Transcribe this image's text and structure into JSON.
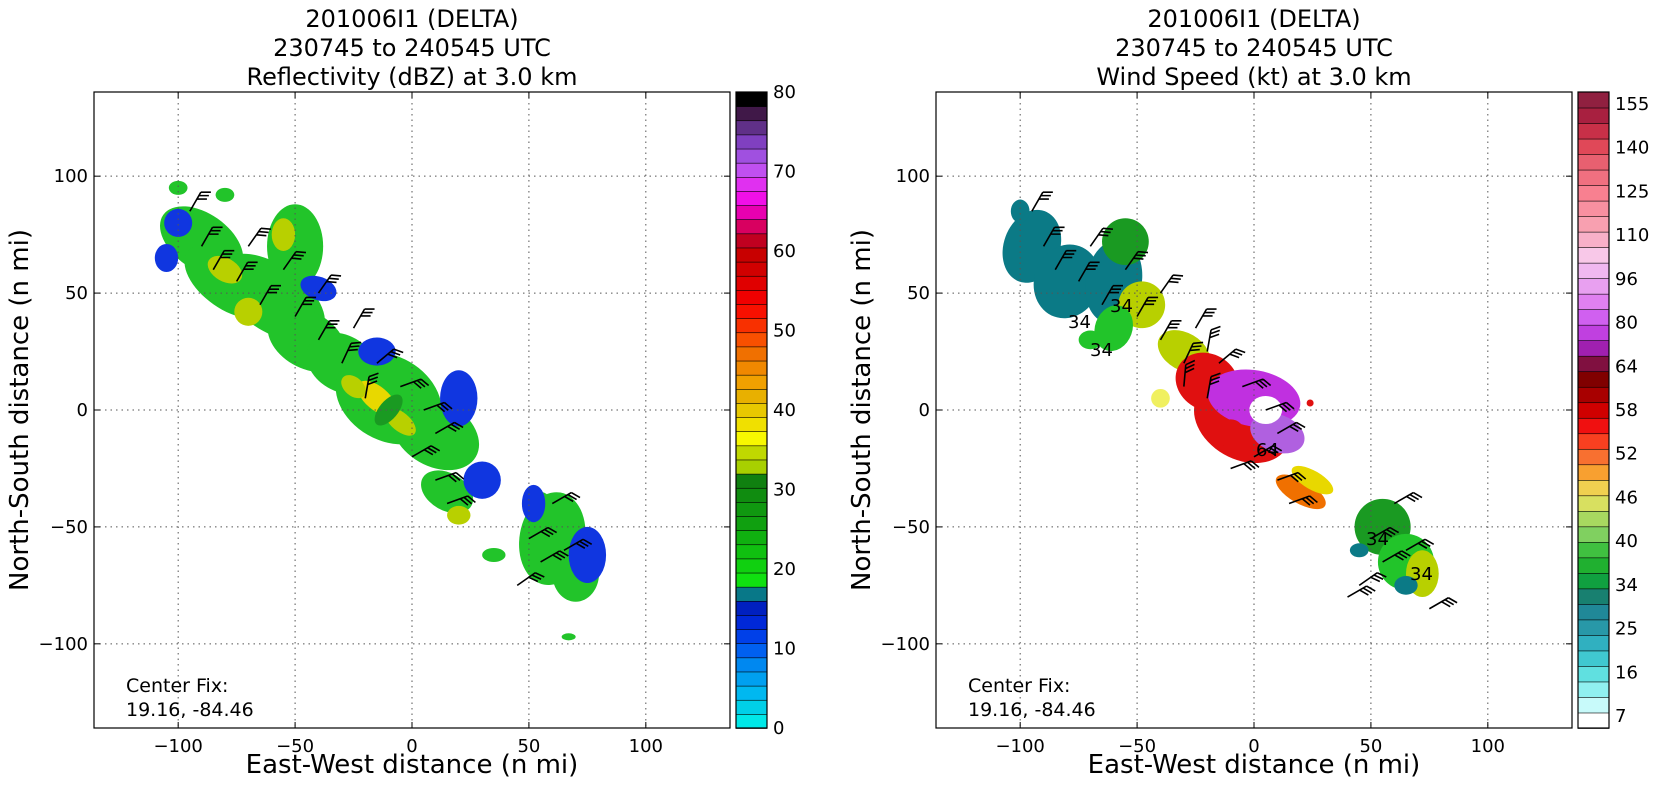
{
  "colors": {
    "blue": "#1036e0",
    "teal": "#0b7a86",
    "green": "#22c42a",
    "darkgreen": "#1a9a22",
    "yellowgreen": "#b8d000",
    "yellow": "#e8d800",
    "orange": "#f07000",
    "red": "#e01010",
    "magenta": "#c030e0",
    "purple": "#b060e0"
  },
  "chart_data": [
    {
      "type": "heatmap",
      "title_lines": [
        "201006I1 (DELTA)",
        "230745 to 240545 UTC",
        "Reflectivity (dBZ) at 3.0 km"
      ],
      "xlabel": "East-West distance (n mi)",
      "ylabel": "North-South distance (n mi)",
      "xlim": [
        -136,
        136
      ],
      "ylim": [
        -136,
        136
      ],
      "xticks": [
        -100,
        -50,
        0,
        50,
        100
      ],
      "yticks": [
        -100,
        -50,
        0,
        50,
        100
      ],
      "grid": true,
      "annotation": {
        "line1": "Center Fix:",
        "line2": "19.16, -84.46"
      },
      "colorbar": {
        "min": 0,
        "max": 80,
        "ticks": [
          0,
          10,
          20,
          30,
          40,
          50,
          60,
          70,
          80
        ],
        "colors": [
          "#00e8e8",
          "#00d0e8",
          "#00b8f0",
          "#00a0f0",
          "#0088f0",
          "#0060f0",
          "#0040e8",
          "#0028d8",
          "#0020c0",
          "#087888",
          "#10e010",
          "#10d010",
          "#10c010",
          "#10b010",
          "#10a010",
          "#109810",
          "#108c10",
          "#108010",
          "#a8d000",
          "#c0d800",
          "#f8f800",
          "#f0e000",
          "#e8c800",
          "#e8b000",
          "#f0a000",
          "#f08800",
          "#f07000",
          "#f85000",
          "#f83000",
          "#f81000",
          "#f00000",
          "#e00000",
          "#d00000",
          "#c80000",
          "#c00020",
          "#d80060",
          "#e800b0",
          "#f010e8",
          "#e030f0",
          "#c050f0",
          "#a050e0",
          "#8040c0",
          "#603088",
          "#401848",
          "#000000"
        ]
      }
    },
    {
      "type": "heatmap",
      "title_lines": [
        "201006I1 (DELTA)",
        "230745 to 240545 UTC",
        "Wind Speed (kt) at 3.0 km"
      ],
      "xlabel": "East-West distance (n mi)",
      "ylabel": "North-South distance (n mi)",
      "xlim": [
        -136,
        136
      ],
      "ylim": [
        -136,
        136
      ],
      "xticks": [
        -100,
        -50,
        0,
        50,
        100
      ],
      "yticks": [
        -100,
        -50,
        0,
        50,
        100
      ],
      "grid": true,
      "contour_labels": [
        "34",
        "34",
        "34",
        "64",
        "34",
        "34"
      ],
      "annotation": {
        "line1": "Center Fix:",
        "line2": "19.16, -84.46"
      },
      "colorbar": {
        "ticks": [
          "7",
          "16",
          "25",
          "34",
          "40",
          "46",
          "52",
          "58",
          "64",
          "80",
          "96",
          "110",
          "125",
          "140",
          "155"
        ],
        "colors": [
          "#ffffff",
          "#c8fafa",
          "#90f0f0",
          "#60e0e0",
          "#40c8d0",
          "#30b0c0",
          "#2898a8",
          "#208898",
          "#188070",
          "#10a040",
          "#20b030",
          "#40c040",
          "#80d060",
          "#a8d860",
          "#d8e060",
          "#f0d050",
          "#f8a030",
          "#f87030",
          "#f84020",
          "#f01010",
          "#d00000",
          "#a80000",
          "#800000",
          "#801040",
          "#a020b0",
          "#c040e0",
          "#d060f0",
          "#e080f0",
          "#e8a0f0",
          "#f0b8f0",
          "#f8c8e8",
          "#f8b0c8",
          "#f8a0b0",
          "#f890a0",
          "#f88090",
          "#f07080",
          "#e86070",
          "#e04858",
          "#c83048",
          "#a82040",
          "#902040"
        ]
      }
    }
  ]
}
